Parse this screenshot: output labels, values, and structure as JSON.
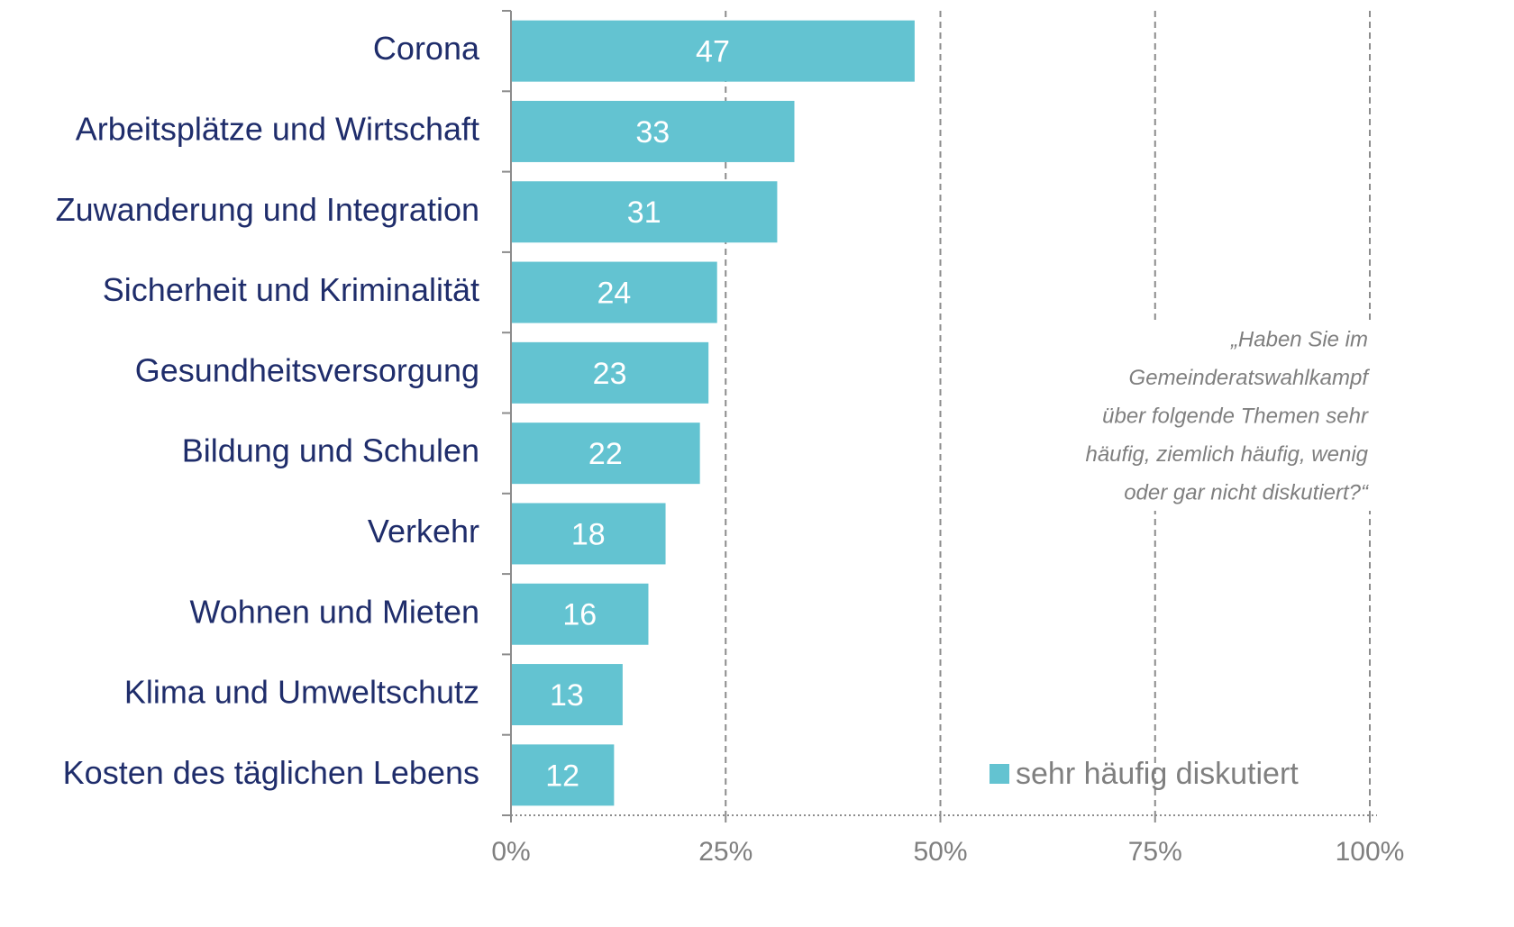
{
  "chart_data": {
    "type": "bar",
    "orientation": "horizontal",
    "categories": [
      "Corona",
      "Arbeitsplätze und Wirtschaft",
      "Zuwanderung und Integration",
      "Sicherheit und Kriminalität",
      "Gesundheitsversorgung",
      "Bildung und Schulen",
      "Verkehr",
      "Wohnen und Mieten",
      "Klima und Umweltschutz",
      "Kosten des täglichen Lebens"
    ],
    "series": [
      {
        "name": "sehr häufig diskutiert",
        "color": "#63c3d1",
        "values": [
          47,
          33,
          31,
          24,
          23,
          22,
          18,
          16,
          13,
          12
        ]
      }
    ],
    "xlim": [
      0,
      100
    ],
    "xticks": [
      {
        "value": 0,
        "label": "0%"
      },
      {
        "value": 25,
        "label": "25%"
      },
      {
        "value": 50,
        "label": "50%"
      },
      {
        "value": 75,
        "label": "75%"
      },
      {
        "value": 100,
        "label": "100%"
      }
    ],
    "grid": true,
    "legend": "bottom-right",
    "annotation": [
      "„Haben Sie im",
      "Gemeinderatswahlkampf",
      "über folgende Themen sehr",
      "häufig, ziemlich häufig, wenig",
      "oder gar nicht diskutiert?“"
    ]
  }
}
